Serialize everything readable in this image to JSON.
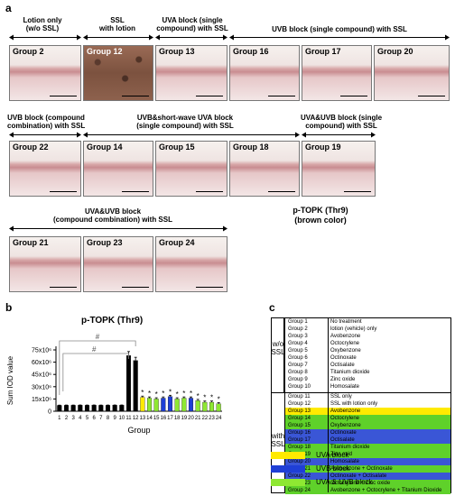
{
  "panel_a": {
    "letter": "a",
    "headers": {
      "lotion_only": "Lotion only\n(w/o SSL)",
      "ssl_lotion": "SSL\nwith lotion",
      "uva_single": "UVA block (single\ncompound) with SSL",
      "uvb_single": "UVB block (single compound) with SSL",
      "uvb_combo": "UVB block (compound\ncombination) with SSL",
      "uvb_shortuva": "UVB&short-wave UVA block\n(single compound) with SSL",
      "uvauvb_single": "UVA&UVB block (single\ncompound) with SSL",
      "uvauvb_combo": "UVA&UVB block\n(compound combination) with SSL"
    },
    "tiles": [
      "Group 2",
      "Group 12",
      "Group 13",
      "Group 16",
      "Group 17",
      "Group 20",
      "Group 22",
      "Group 14",
      "Group 15",
      "Group 18",
      "Group 19",
      "Group 21",
      "Group 23",
      "Group 24"
    ],
    "stain_label": "p-TOPK (Thr9)\n(brown color)"
  },
  "panel_b": {
    "letter": "b",
    "significance_mark": "#"
  },
  "chart_data": {
    "type": "bar",
    "title": "p-TOPK (Thr9)",
    "xlabel": "Group",
    "ylabel": "Sum IOD value",
    "categories": [
      "1",
      "2",
      "3",
      "4",
      "5",
      "6",
      "7",
      "8",
      "9",
      "10",
      "11",
      "12",
      "13",
      "14",
      "15",
      "16",
      "17",
      "18",
      "19",
      "20",
      "21",
      "22",
      "23",
      "24"
    ],
    "values": [
      7200000,
      7300000,
      7300000,
      7400000,
      7300000,
      7400000,
      7300000,
      7300000,
      7400000,
      7400000,
      68000000,
      62000000,
      17000000,
      16000000,
      15000000,
      16000000,
      18000000,
      15000000,
      16000000,
      16000000,
      13000000,
      11000000,
      11000000,
      9000000
    ],
    "errors": [
      300000,
      300000,
      300000,
      300000,
      300000,
      300000,
      300000,
      300000,
      300000,
      300000,
      5000000,
      4000000,
      1500000,
      1500000,
      1500000,
      1500000,
      1500000,
      1500000,
      1500000,
      1500000,
      1500000,
      1500000,
      1500000,
      1500000
    ],
    "colors": [
      "#000000",
      "#000000",
      "#000000",
      "#000000",
      "#000000",
      "#000000",
      "#000000",
      "#000000",
      "#000000",
      "#000000",
      "#000000",
      "#000000",
      "#ffea00",
      "#8ee832",
      "#8ee832",
      "#1f3fd6",
      "#1f3fd6",
      "#8ee832",
      "#8ee832",
      "#1f3fd6",
      "#8ee832",
      "#8ee832",
      "#8ee832",
      "#8ee832"
    ],
    "asterisk": [
      false,
      false,
      false,
      false,
      false,
      false,
      false,
      false,
      false,
      false,
      false,
      false,
      true,
      true,
      true,
      true,
      true,
      true,
      true,
      true,
      true,
      true,
      true,
      true
    ],
    "yticks": [
      "0",
      "15x10⁶",
      "30x10⁶",
      "45x10⁶",
      "60x10⁶",
      "75x10⁶"
    ],
    "ytick_values": [
      0,
      15000000,
      30000000,
      45000000,
      60000000,
      75000000
    ],
    "ylim": [
      0,
      75000000
    ]
  },
  "panel_c": {
    "letter": "c",
    "section_wo": "w/o\nSSL",
    "section_with": "with\nSSL",
    "rows_wo": [
      {
        "g": "Group 1",
        "d": "No treatment"
      },
      {
        "g": "Group 2",
        "d": "lotion (vehicle) only"
      },
      {
        "g": "Group 3",
        "d": "Avobenzone"
      },
      {
        "g": "Group 4",
        "d": "Octocrylene"
      },
      {
        "g": "Group 5",
        "d": "Oxybenzone"
      },
      {
        "g": "Group 6",
        "d": "Octinoxate"
      },
      {
        "g": "Group 7",
        "d": "Octisalate"
      },
      {
        "g": "Group 8",
        "d": "Titanium dioxide"
      },
      {
        "g": "Group 9",
        "d": "Zinc oxide"
      },
      {
        "g": "Group 10",
        "d": "Homosalate"
      }
    ],
    "rows_with": [
      {
        "g": "Group 11",
        "d": "SSL only",
        "c": "#ffffff"
      },
      {
        "g": "Group 12",
        "d": "SSL with lotion only",
        "c": "#ffffff"
      },
      {
        "g": "Group 13",
        "d": "Avobenzone",
        "c": "#ffea00"
      },
      {
        "g": "Group 14",
        "d": "Octocrylene",
        "c": "#5fd12a"
      },
      {
        "g": "Group 15",
        "d": "Oxybenzone",
        "c": "#5fd12a"
      },
      {
        "g": "Group 16",
        "d": "Octinoxate",
        "c": "#3a56d6"
      },
      {
        "g": "Group 17",
        "d": "Octisalate",
        "c": "#3a56d6"
      },
      {
        "g": "Group 18",
        "d": "Titanium dioxide",
        "c": "#5fd12a"
      },
      {
        "g": "Group 19",
        "d": "Zinc oxid",
        "c": "#5fd12a"
      },
      {
        "g": "Group 20",
        "d": "Homosalate",
        "c": "#3a56d6"
      },
      {
        "g": "Group 21",
        "d": "Avobenzone + Octinoxate",
        "c": "#5fd12a"
      },
      {
        "g": "Group 22",
        "d": "Octinoxate + Octisalate",
        "c": "#3a56d6"
      },
      {
        "g": "Group 23",
        "d": "Octocrylene + Zinc oxide",
        "c": "#5fd12a"
      },
      {
        "g": "Group 24",
        "d": "Avobenzone + Octocrylene + Titanium Dioxide",
        "c": "#5fd12a"
      }
    ],
    "legend": [
      {
        "label": "UVA block",
        "color": "#ffea00"
      },
      {
        "label": "UVB block",
        "color": "#1f3fd6"
      },
      {
        "label": "UVA & UVB block",
        "color": "#8ee832"
      }
    ]
  }
}
